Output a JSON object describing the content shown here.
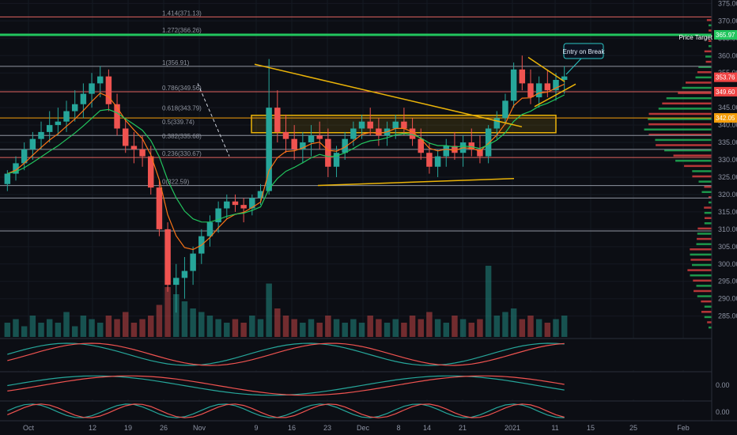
{
  "chart_data": {
    "type": "candlestick",
    "title": "",
    "xlabel": "",
    "ylabel": "",
    "ylim": [
      279,
      376
    ],
    "y_ticks": [
      285,
      290,
      295,
      300,
      305,
      310,
      315,
      320,
      325,
      330,
      335,
      340,
      345,
      350,
      355,
      360,
      365,
      370,
      375
    ],
    "x_ticks": [
      {
        "label": "Oct",
        "x": 4
      },
      {
        "label": "12",
        "x": 13
      },
      {
        "label": "19",
        "x": 18
      },
      {
        "label": "26",
        "x": 23
      },
      {
        "label": "Nov",
        "x": 28
      },
      {
        "label": "9",
        "x": 36
      },
      {
        "label": "16",
        "x": 41
      },
      {
        "label": "23",
        "x": 46
      },
      {
        "label": "Dec",
        "x": 51
      },
      {
        "label": "8",
        "x": 56
      },
      {
        "label": "14",
        "x": 60
      },
      {
        "label": "21",
        "x": 65
      },
      {
        "label": "2021",
        "x": 72
      },
      {
        "label": "11",
        "x": 78
      },
      {
        "label": "15",
        "x": 83
      },
      {
        "label": "25",
        "x": 89
      },
      {
        "label": "Feb",
        "x": 96
      }
    ],
    "fib_levels": [
      {
        "label": "1.414(371.13)",
        "value": 371.13
      },
      {
        "label": "1.272(366.26)",
        "value": 366.26
      },
      {
        "label": "1(356.91)",
        "value": 356.91
      },
      {
        "label": "0.786(349.56)",
        "value": 349.56
      },
      {
        "label": "0.618(343.79)",
        "value": 343.79
      },
      {
        "label": "0.5(339.74)",
        "value": 339.74
      },
      {
        "label": "0.382(335.68)",
        "value": 335.68
      },
      {
        "label": "0.236(330.67)",
        "value": 330.67
      },
      {
        "label": "0(322.59)",
        "value": 322.59
      }
    ],
    "price_tags": [
      {
        "label": "365.97",
        "value": 365.97,
        "color": "#22c55e"
      },
      {
        "label": "353.76",
        "value": 353.76,
        "color": "#ef4444"
      },
      {
        "label": "349.60",
        "value": 349.6,
        "color": "#ef4444"
      },
      {
        "label": "342.05",
        "value": 342.05,
        "color": "#f59e0b"
      }
    ],
    "horizontal_lines": [
      {
        "value": 371.13,
        "color": "#e0645f"
      },
      {
        "value": 365.97,
        "color": "#22c55e"
      },
      {
        "value": 349.6,
        "color": "#e0645f"
      },
      {
        "value": 356.91,
        "color": "#8f949f"
      },
      {
        "value": 337.0,
        "color": "#8f949f"
      },
      {
        "value": 333.0,
        "color": "#8f949f"
      },
      {
        "value": 330.67,
        "color": "#e0645f"
      },
      {
        "value": 322.59,
        "color": "#8f949f"
      },
      {
        "value": 319.0,
        "color": "#8f949f"
      },
      {
        "value": 309.5,
        "color": "#8f949f"
      }
    ],
    "annotations": {
      "price_target": "Price Target",
      "entry": "Entry on Break"
    },
    "candles": [
      [
        323,
        327,
        321,
        326
      ],
      [
        326,
        331,
        324,
        329
      ],
      [
        329,
        335,
        327,
        333
      ],
      [
        333,
        338,
        330,
        336
      ],
      [
        336,
        341,
        333,
        338
      ],
      [
        338,
        344,
        335,
        340
      ],
      [
        340,
        345,
        337,
        341
      ],
      [
        341,
        347,
        338,
        344
      ],
      [
        344,
        350,
        341,
        346
      ],
      [
        346,
        352,
        342,
        349
      ],
      [
        349,
        355,
        345,
        352
      ],
      [
        352,
        357,
        348,
        354
      ],
      [
        354,
        356,
        344,
        346
      ],
      [
        346,
        349,
        337,
        339
      ],
      [
        339,
        342,
        332,
        334
      ],
      [
        334,
        338,
        329,
        333
      ],
      [
        333,
        337,
        328,
        331
      ],
      [
        331,
        334,
        320,
        322
      ],
      [
        322,
        324,
        308,
        310
      ],
      [
        310,
        312,
        292,
        294
      ],
      [
        294,
        300,
        286,
        296
      ],
      [
        296,
        302,
        290,
        298
      ],
      [
        298,
        305,
        294,
        303
      ],
      [
        303,
        310,
        300,
        308
      ],
      [
        308,
        314,
        305,
        312
      ],
      [
        312,
        318,
        309,
        316
      ],
      [
        316,
        320,
        313,
        318
      ],
      [
        318,
        320,
        315,
        317
      ],
      [
        317,
        319,
        312,
        316
      ],
      [
        316,
        320,
        314,
        319
      ],
      [
        319,
        323,
        317,
        321
      ],
      [
        321,
        359,
        320,
        345
      ],
      [
        345,
        350,
        335,
        338
      ],
      [
        338,
        343,
        332,
        336
      ],
      [
        336,
        340,
        330,
        333
      ],
      [
        333,
        338,
        329,
        335
      ],
      [
        335,
        340,
        331,
        337
      ],
      [
        337,
        341,
        333,
        336
      ],
      [
        336,
        339,
        325,
        328
      ],
      [
        328,
        334,
        325,
        332
      ],
      [
        332,
        338,
        330,
        336
      ],
      [
        336,
        341,
        334,
        339
      ],
      [
        339,
        343,
        336,
        341
      ],
      [
        341,
        345,
        337,
        339
      ],
      [
        339,
        342,
        334,
        337
      ],
      [
        337,
        341,
        334,
        339
      ],
      [
        339,
        343,
        336,
        341
      ],
      [
        341,
        345,
        337,
        339
      ],
      [
        339,
        342,
        334,
        336
      ],
      [
        336,
        339,
        330,
        332
      ],
      [
        332,
        335,
        326,
        328
      ],
      [
        328,
        333,
        325,
        331
      ],
      [
        331,
        336,
        328,
        334
      ],
      [
        334,
        338,
        330,
        332
      ],
      [
        332,
        337,
        328,
        335
      ],
      [
        335,
        339,
        331,
        333
      ],
      [
        333,
        337,
        329,
        331
      ],
      [
        331,
        340,
        329,
        339
      ],
      [
        339,
        344,
        336,
        342
      ],
      [
        342,
        349,
        340,
        347
      ],
      [
        347,
        358,
        345,
        356
      ],
      [
        356,
        360,
        350,
        352
      ],
      [
        352,
        356,
        346,
        348
      ],
      [
        348,
        354,
        345,
        352
      ],
      [
        352,
        356,
        348,
        350
      ],
      [
        350,
        355,
        347,
        353
      ],
      [
        353,
        357,
        349,
        354
      ]
    ],
    "volume": [
      4,
      5,
      3,
      6,
      4,
      5,
      4,
      7,
      3,
      6,
      5,
      4,
      6,
      5,
      7,
      4,
      5,
      6,
      9,
      14,
      12,
      10,
      8,
      7,
      6,
      5,
      4,
      5,
      4,
      6,
      5,
      15,
      8,
      6,
      5,
      4,
      5,
      4,
      6,
      5,
      4,
      5,
      4,
      6,
      5,
      4,
      5,
      4,
      6,
      5,
      7,
      5,
      4,
      6,
      5,
      4,
      5,
      20,
      6,
      7,
      8,
      5,
      6,
      5,
      4,
      5,
      6
    ],
    "oscillator": {
      "label_1": "0.00",
      "label_2": "0.00"
    }
  }
}
